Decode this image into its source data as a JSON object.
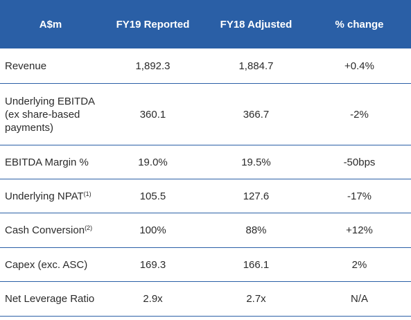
{
  "header": {
    "col1": "A$m",
    "col2": "FY19 Reported",
    "col3": "FY18 Adjusted",
    "col4": "% change"
  },
  "rows": [
    {
      "label": "Revenue",
      "sup": "",
      "fy19": "1,892.3",
      "fy18": "1,884.7",
      "change": "+0.4%"
    },
    {
      "label_lines": [
        "Underlying EBITDA",
        "(ex share-based",
        "payments)"
      ],
      "fy19": "360.1",
      "fy18": "366.7",
      "change": "-2%"
    },
    {
      "label": "EBITDA Margin %",
      "sup": "",
      "fy19": "19.0%",
      "fy18": "19.5%",
      "change": "-50bps"
    },
    {
      "label": "Underlying NPAT",
      "sup": "(1)",
      "fy19": "105.5",
      "fy18": "127.6",
      "change": "-17%"
    },
    {
      "label": "Cash Conversion",
      "sup": "(2)",
      "fy19": "100%",
      "fy18": "88%",
      "change": "+12%"
    },
    {
      "label": "Capex (exc. ASC)",
      "sup": "",
      "fy19": "169.3",
      "fy18": "166.1",
      "change": "2%"
    },
    {
      "label": "Net Leverage Ratio",
      "sup": "",
      "fy19": "2.9x",
      "fy18": "2.7x",
      "change": "N/A"
    }
  ],
  "colors": {
    "header_bg": "#2a5fa6",
    "header_text": "#ffffff",
    "body_text": "#2b2b2b",
    "rule": "#2a5fa6"
  }
}
